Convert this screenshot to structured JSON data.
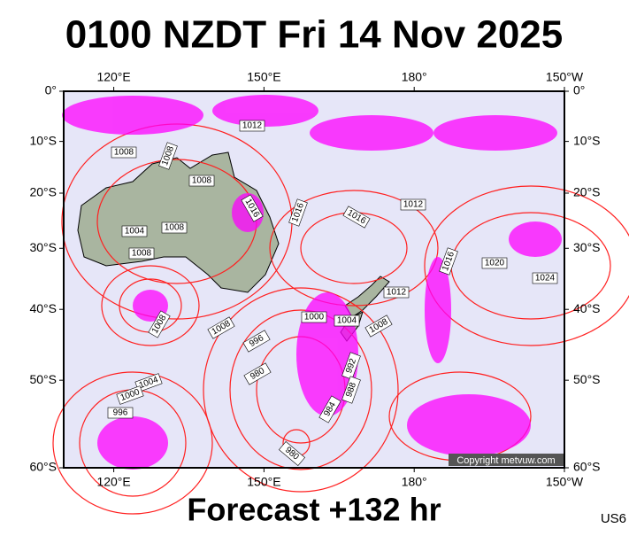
{
  "map": {
    "title": "0100 NZDT Fri 14 Nov 2025",
    "footer": "Forecast +132 hr",
    "corner_code": "US6",
    "copyright": "Copyright metvuw.com",
    "lon_lim": [
      110,
      210
    ],
    "lat_lim": [
      0,
      -60
    ],
    "lon_ticks": [
      {
        "value": 120,
        "label": "120°E"
      },
      {
        "value": 150,
        "label": "150°E"
      },
      {
        "value": 180,
        "label": "180°"
      },
      {
        "value": 210,
        "label": "150°W"
      }
    ],
    "lat_ticks": [
      {
        "value": 0,
        "label": "0°"
      },
      {
        "value": -10,
        "label": "10°S"
      },
      {
        "value": -20,
        "label": "20°S"
      },
      {
        "value": -30,
        "label": "30°S"
      },
      {
        "value": -40,
        "label": "40°S"
      },
      {
        "value": -50,
        "label": "50°S"
      },
      {
        "value": -60,
        "label": "60°S"
      }
    ],
    "isobar_labels": [
      "1012",
      "1008",
      "1008",
      "1008",
      "1016",
      "1004",
      "1008",
      "1008",
      "1016",
      "1016",
      "1012",
      "1016",
      "1020",
      "1024",
      "1012",
      "1008",
      "1000",
      "1004",
      "1008",
      "1008",
      "996",
      "1004",
      "980",
      "1000",
      "996",
      "992",
      "988",
      "984",
      "980"
    ]
  }
}
